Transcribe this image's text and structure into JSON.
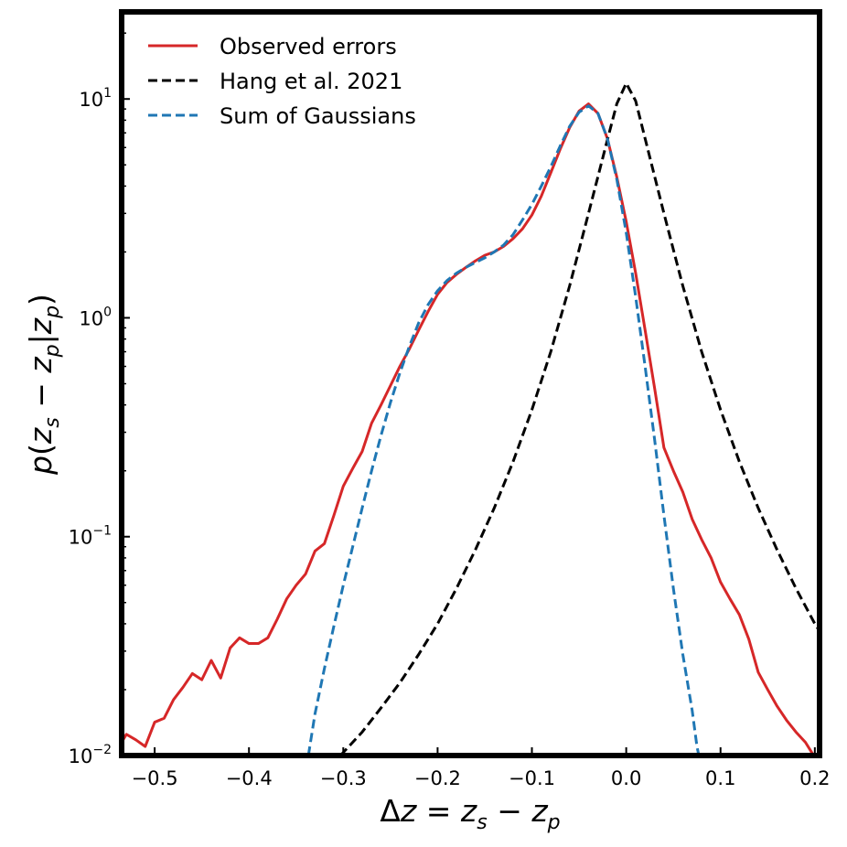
{
  "chart_data": {
    "type": "line",
    "xlabel": "Δz = z_s − z_p",
    "ylabel": "p(z_s − z_p|z_p)",
    "xlim": [
      -0.535,
      0.205
    ],
    "ylim": [
      0.01,
      25
    ],
    "yscale": "log",
    "grid": false,
    "legend_position": "top-left",
    "x_ticks": [
      -0.5,
      -0.4,
      -0.3,
      -0.2,
      -0.1,
      0.0,
      0.1,
      0.2
    ],
    "x_tick_labels": [
      "−0.5",
      "−0.4",
      "−0.3",
      "−0.2",
      "−0.1",
      "0.0",
      "0.1",
      "0.2"
    ],
    "y_ticks": [
      {
        "value": 0.01,
        "base": "10",
        "exp": "−2"
      },
      {
        "value": 0.1,
        "base": "10",
        "exp": "−1"
      },
      {
        "value": 1,
        "base": "10",
        "exp": "0"
      },
      {
        "value": 10,
        "base": "10",
        "exp": "1"
      }
    ],
    "series": [
      {
        "name": "Observed errors",
        "color": "#d62728",
        "dash": "solid",
        "points": [
          [
            -0.535,
            0.0115
          ],
          [
            -0.53,
            0.0125
          ],
          [
            -0.52,
            0.0118
          ],
          [
            -0.51,
            0.011
          ],
          [
            -0.5,
            0.0142
          ],
          [
            -0.49,
            0.0148
          ],
          [
            -0.48,
            0.018
          ],
          [
            -0.47,
            0.0205
          ],
          [
            -0.46,
            0.0237
          ],
          [
            -0.45,
            0.0222
          ],
          [
            -0.44,
            0.0272
          ],
          [
            -0.43,
            0.0226
          ],
          [
            -0.42,
            0.031
          ],
          [
            -0.41,
            0.0345
          ],
          [
            -0.4,
            0.0325
          ],
          [
            -0.39,
            0.0325
          ],
          [
            -0.38,
            0.0345
          ],
          [
            -0.37,
            0.042
          ],
          [
            -0.36,
            0.052
          ],
          [
            -0.35,
            0.06
          ],
          [
            -0.34,
            0.0675
          ],
          [
            -0.33,
            0.086
          ],
          [
            -0.32,
            0.093
          ],
          [
            -0.31,
            0.125
          ],
          [
            -0.3,
            0.17
          ],
          [
            -0.29,
            0.205
          ],
          [
            -0.28,
            0.245
          ],
          [
            -0.27,
            0.33
          ],
          [
            -0.26,
            0.4
          ],
          [
            -0.25,
            0.49
          ],
          [
            -0.24,
            0.6
          ],
          [
            -0.23,
            0.72
          ],
          [
            -0.22,
            0.88
          ],
          [
            -0.21,
            1.07
          ],
          [
            -0.2,
            1.28
          ],
          [
            -0.19,
            1.45
          ],
          [
            -0.18,
            1.58
          ],
          [
            -0.17,
            1.7
          ],
          [
            -0.16,
            1.82
          ],
          [
            -0.15,
            1.93
          ],
          [
            -0.14,
            2.0
          ],
          [
            -0.13,
            2.12
          ],
          [
            -0.12,
            2.3
          ],
          [
            -0.11,
            2.55
          ],
          [
            -0.1,
            2.95
          ],
          [
            -0.09,
            3.6
          ],
          [
            -0.08,
            4.6
          ],
          [
            -0.07,
            5.9
          ],
          [
            -0.06,
            7.4
          ],
          [
            -0.05,
            8.8
          ],
          [
            -0.04,
            9.5
          ],
          [
            -0.03,
            8.6
          ],
          [
            -0.02,
            6.6
          ],
          [
            -0.01,
            4.4
          ],
          [
            0.0,
            2.75
          ],
          [
            0.01,
            1.6
          ],
          [
            0.02,
            0.88
          ],
          [
            0.03,
            0.48
          ],
          [
            0.04,
            0.255
          ],
          [
            0.05,
            0.2
          ],
          [
            0.06,
            0.16
          ],
          [
            0.07,
            0.12
          ],
          [
            0.08,
            0.097
          ],
          [
            0.09,
            0.08
          ],
          [
            0.1,
            0.062
          ],
          [
            0.11,
            0.052
          ],
          [
            0.12,
            0.044
          ],
          [
            0.13,
            0.034
          ],
          [
            0.14,
            0.024
          ],
          [
            0.15,
            0.02
          ],
          [
            0.16,
            0.0168
          ],
          [
            0.17,
            0.0145
          ],
          [
            0.18,
            0.0128
          ],
          [
            0.19,
            0.0115
          ],
          [
            0.2,
            0.0098
          ]
        ]
      },
      {
        "name": "Hang et al. 2021",
        "color": "#000000",
        "dash": "dashed",
        "points": [
          [
            -0.303,
            0.01
          ],
          [
            -0.28,
            0.0128
          ],
          [
            -0.26,
            0.0165
          ],
          [
            -0.24,
            0.0215
          ],
          [
            -0.22,
            0.029
          ],
          [
            -0.2,
            0.04
          ],
          [
            -0.18,
            0.058
          ],
          [
            -0.16,
            0.087
          ],
          [
            -0.14,
            0.135
          ],
          [
            -0.12,
            0.22
          ],
          [
            -0.1,
            0.38
          ],
          [
            -0.08,
            0.7
          ],
          [
            -0.06,
            1.4
          ],
          [
            -0.04,
            3.0
          ],
          [
            -0.02,
            6.5
          ],
          [
            -0.01,
            9.5
          ],
          [
            0.0,
            11.8
          ],
          [
            0.01,
            9.8
          ],
          [
            0.02,
            6.6
          ],
          [
            0.04,
            3.0
          ],
          [
            0.06,
            1.4
          ],
          [
            0.08,
            0.7
          ],
          [
            0.1,
            0.38
          ],
          [
            0.12,
            0.22
          ],
          [
            0.14,
            0.135
          ],
          [
            0.16,
            0.087
          ],
          [
            0.18,
            0.058
          ],
          [
            0.2,
            0.04
          ],
          [
            0.205,
            0.037
          ]
        ]
      },
      {
        "name": "Sum of Gaussians",
        "color": "#1f77b4",
        "dash": "dashed",
        "points": [
          [
            -0.337,
            0.01
          ],
          [
            -0.33,
            0.0155
          ],
          [
            -0.32,
            0.025
          ],
          [
            -0.31,
            0.039
          ],
          [
            -0.3,
            0.06
          ],
          [
            -0.29,
            0.09
          ],
          [
            -0.28,
            0.135
          ],
          [
            -0.27,
            0.2
          ],
          [
            -0.26,
            0.29
          ],
          [
            -0.25,
            0.41
          ],
          [
            -0.24,
            0.56
          ],
          [
            -0.23,
            0.74
          ],
          [
            -0.22,
            0.95
          ],
          [
            -0.21,
            1.15
          ],
          [
            -0.2,
            1.33
          ],
          [
            -0.19,
            1.48
          ],
          [
            -0.18,
            1.6
          ],
          [
            -0.17,
            1.7
          ],
          [
            -0.16,
            1.79
          ],
          [
            -0.15,
            1.88
          ],
          [
            -0.14,
            2.0
          ],
          [
            -0.13,
            2.15
          ],
          [
            -0.12,
            2.4
          ],
          [
            -0.11,
            2.8
          ],
          [
            -0.1,
            3.3
          ],
          [
            -0.09,
            4.0
          ],
          [
            -0.08,
            4.9
          ],
          [
            -0.07,
            6.1
          ],
          [
            -0.06,
            7.5
          ],
          [
            -0.05,
            8.7
          ],
          [
            -0.04,
            9.3
          ],
          [
            -0.03,
            8.6
          ],
          [
            -0.02,
            6.6
          ],
          [
            -0.01,
            4.3
          ],
          [
            0.0,
            2.45
          ],
          [
            0.01,
            1.25
          ],
          [
            0.02,
            0.6
          ],
          [
            0.03,
            0.28
          ],
          [
            0.04,
            0.125
          ],
          [
            0.05,
            0.058
          ],
          [
            0.06,
            0.029
          ],
          [
            0.07,
            0.016
          ],
          [
            0.075,
            0.011
          ],
          [
            0.077,
            0.01
          ]
        ]
      }
    ]
  }
}
